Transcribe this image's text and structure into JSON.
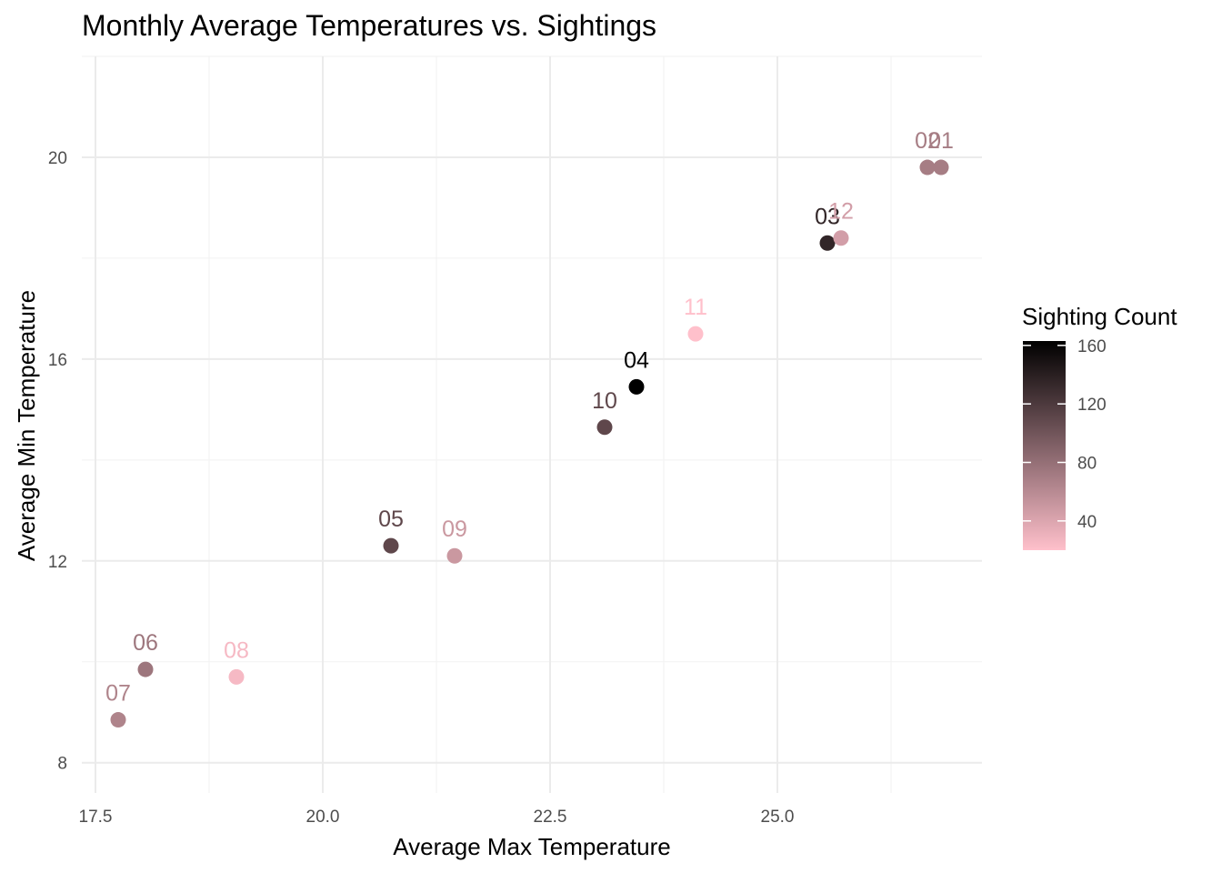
{
  "chart_data": {
    "type": "scatter",
    "title": "Monthly Average Temperatures vs. Sightings",
    "xlabel": "Average Max Temperature",
    "ylabel": "Average Min Temperature",
    "xlim": [
      17.35,
      27.25
    ],
    "ylim": [
      7.4,
      22.0
    ],
    "x_ticks": [
      17.5,
      20.0,
      22.5,
      25.0
    ],
    "x_tick_labels": [
      "17.5",
      "20.0",
      "22.5",
      "25.0"
    ],
    "y_ticks": [
      8,
      12,
      16,
      20
    ],
    "y_tick_labels": [
      "8",
      "12",
      "16",
      "20"
    ],
    "grid": true,
    "legend_position": "right",
    "color_scale": {
      "title": "Sighting Count",
      "low_color": "#FFC0CB",
      "high_color": "#000000",
      "range": [
        20,
        163
      ],
      "ticks": [
        40,
        80,
        120,
        160
      ],
      "tick_labels": [
        "40",
        "80",
        "120",
        "160"
      ]
    },
    "points": [
      {
        "label": "01",
        "x": 26.8,
        "y": 19.8,
        "count": 70
      },
      {
        "label": "02",
        "x": 26.65,
        "y": 19.8,
        "count": 70
      },
      {
        "label": "03",
        "x": 25.55,
        "y": 18.3,
        "count": 135
      },
      {
        "label": "04",
        "x": 23.45,
        "y": 15.45,
        "count": 163
      },
      {
        "label": "05",
        "x": 20.75,
        "y": 12.3,
        "count": 110
      },
      {
        "label": "06",
        "x": 18.05,
        "y": 9.85,
        "count": 75
      },
      {
        "label": "07",
        "x": 17.75,
        "y": 8.85,
        "count": 65
      },
      {
        "label": "08",
        "x": 19.05,
        "y": 9.7,
        "count": 25
      },
      {
        "label": "09",
        "x": 21.45,
        "y": 12.1,
        "count": 50
      },
      {
        "label": "10",
        "x": 23.1,
        "y": 14.65,
        "count": 110
      },
      {
        "label": "11",
        "x": 24.1,
        "y": 16.5,
        "count": 20
      },
      {
        "label": "12",
        "x": 25.7,
        "y": 18.4,
        "count": 45
      }
    ]
  }
}
